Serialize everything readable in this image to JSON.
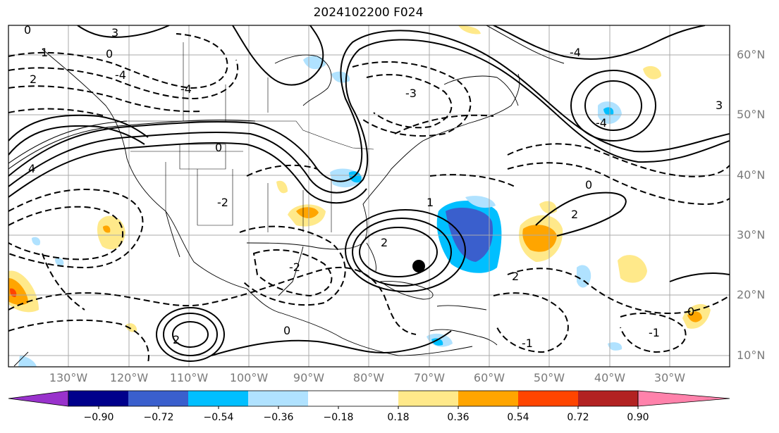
{
  "title": "2024102200 F024",
  "map": {
    "latitude_labels": [
      "60°N",
      "50°N",
      "40°N",
      "30°N",
      "20°N",
      "10°N"
    ],
    "longitude_labels": [
      "130°W",
      "120°W",
      "110°W",
      "100°W",
      "90°W",
      "80°W",
      "70°W",
      "60°W",
      "50°W",
      "40°W",
      "30°W"
    ],
    "contour_labels": [
      "0",
      "1",
      "2",
      "3",
      "4",
      "-1",
      "-2",
      "-3",
      "-4"
    ],
    "colors": {
      "background": "#ffffff",
      "frame": "#000000",
      "grid": "#aaaaaa",
      "coast": "#000000"
    }
  },
  "colorbar": {
    "tick_labels": [
      "−0.90",
      "−0.72",
      "−0.54",
      "−0.36",
      "−0.18",
      "0.18",
      "0.36",
      "0.54",
      "0.72",
      "0.90"
    ],
    "colors": [
      "#9932cc",
      "#00008b",
      "#3a5fcd",
      "#00bfff",
      "#b0e2ff",
      "#ffffff",
      "#ffe98a",
      "#ffa500",
      "#ff4500",
      "#b22222",
      "#ff82ab"
    ]
  }
}
